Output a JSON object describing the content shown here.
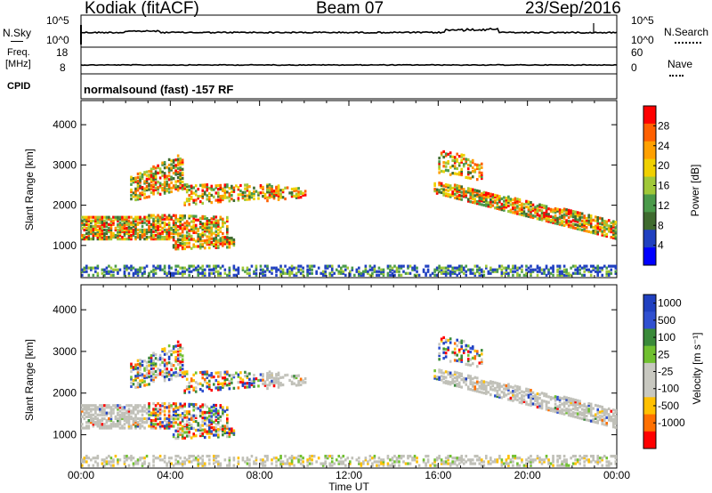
{
  "header": {
    "site": "Kodiak (fitACF)",
    "beam": "Beam 07",
    "date": "23/Sep/2016"
  },
  "panels": {
    "nsky_label": "N.Sky",
    "nsky_ticks": [
      "10^5",
      "10^0"
    ],
    "nsearch_label": "N.Search",
    "nsearch_ticks": [
      "10^5",
      "10^0"
    ],
    "freq_label_1": "Freq.",
    "freq_label_2": "[MHz]",
    "freq_ticks": [
      "18",
      "8"
    ],
    "nave_label": "Nave",
    "nave_ticks": [
      "60",
      "0"
    ],
    "cpid_label": "CPID",
    "cpid_text": "normalsound (fast) -157 RF"
  },
  "colors": {
    "power_scale": [
      "#0000ff",
      "#2040c0",
      "#3f6b2f",
      "#4a9a4a",
      "#a0c838",
      "#f0d000",
      "#ffa000",
      "#ff6000",
      "#ff0000"
    ],
    "velocity_scale": [
      "#2040c0",
      "#3050d0",
      "#3a8a3a",
      "#70c030",
      "#c8c8c0",
      "#c8c8c0",
      "#ffc000",
      "#ff7000",
      "#ff0000"
    ],
    "ground_scatter": "#c0c0b8"
  },
  "chart_data": [
    {
      "type": "heatmap",
      "name": "power",
      "ylabel": "Slant Range [km]",
      "yticks": [
        "1000",
        "2000",
        "3000",
        "4000"
      ],
      "ylim": [
        200,
        4600
      ],
      "xlim": [
        0,
        24
      ],
      "colorbar_label": "Power [dB]",
      "colorbar_ticks": [
        "4",
        "8",
        "12",
        "16",
        "20",
        "24",
        "28"
      ],
      "colorbar_range": [
        0,
        32
      ]
    },
    {
      "type": "heatmap",
      "name": "velocity",
      "ylabel": "Slant Range [km]",
      "yticks": [
        "1000",
        "2000",
        "3000",
        "4000"
      ],
      "ylim": [
        200,
        4600
      ],
      "xlim": [
        0,
        24
      ],
      "xlabel": "Time UT",
      "xticks": [
        "00:00",
        "04:00",
        "08:00",
        "12:00",
        "16:00",
        "20:00",
        "00:00"
      ],
      "colorbar_label": "Velocity [m s⁻¹]",
      "colorbar_ticks": [
        "1000",
        "500",
        "100",
        "25",
        "-25",
        "-100",
        "-500",
        "-1000"
      ]
    }
  ]
}
